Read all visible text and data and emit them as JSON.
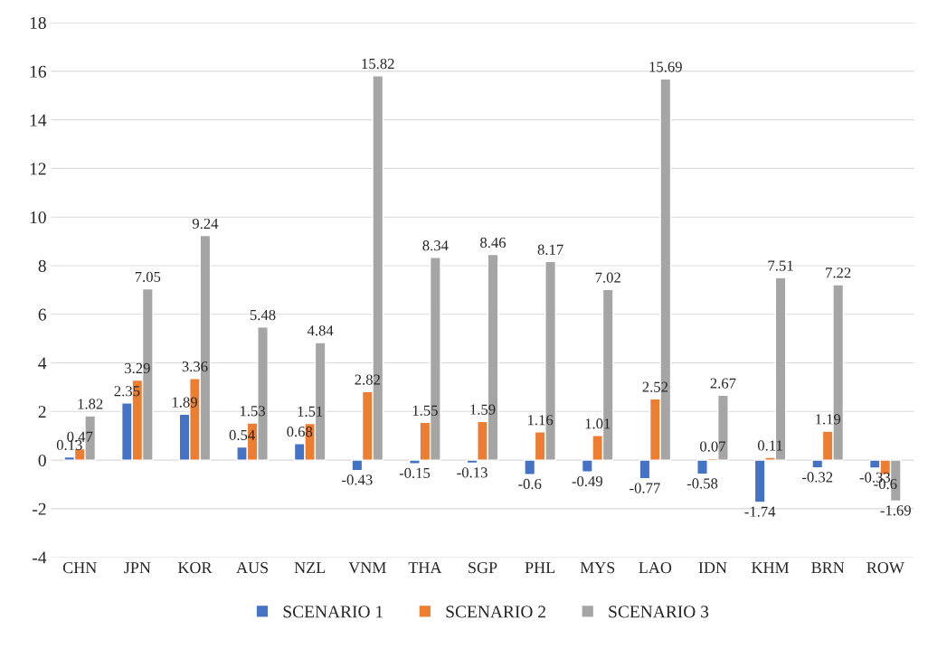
{
  "chart_data": {
    "type": "bar",
    "categories": [
      "CHN",
      "JPN",
      "KOR",
      "AUS",
      "NZL",
      "VNM",
      "THA",
      "SGP",
      "PHL",
      "MYS",
      "LAO",
      "IDN",
      "KHM",
      "BRN",
      "ROW"
    ],
    "series": [
      {
        "name": "SCENARIO 1",
        "color": "#4472c4",
        "values": [
          0.13,
          2.35,
          1.89,
          0.54,
          0.68,
          -0.43,
          -0.15,
          -0.13,
          -0.6,
          -0.49,
          -0.77,
          -0.58,
          -1.74,
          -0.32,
          -0.33
        ]
      },
      {
        "name": "SCENARIO 2",
        "color": "#ed7d31",
        "values": [
          0.47,
          3.29,
          3.36,
          1.53,
          1.51,
          2.82,
          1.55,
          1.59,
          1.16,
          1.01,
          2.52,
          0.07,
          0.11,
          1.19,
          -0.6
        ]
      },
      {
        "name": "SCENARIO 3",
        "color": "#a5a5a5",
        "values": [
          1.82,
          7.05,
          9.24,
          5.48,
          4.84,
          15.82,
          8.34,
          8.46,
          8.17,
          7.02,
          15.69,
          2.67,
          7.51,
          7.22,
          -1.69
        ]
      }
    ],
    "ylim": [
      -4,
      18
    ],
    "yticks": [
      -4,
      -2,
      0,
      2,
      4,
      6,
      8,
      10,
      12,
      14,
      16,
      18
    ],
    "grid": "y",
    "legend": "bottom",
    "data_labels": true
  }
}
